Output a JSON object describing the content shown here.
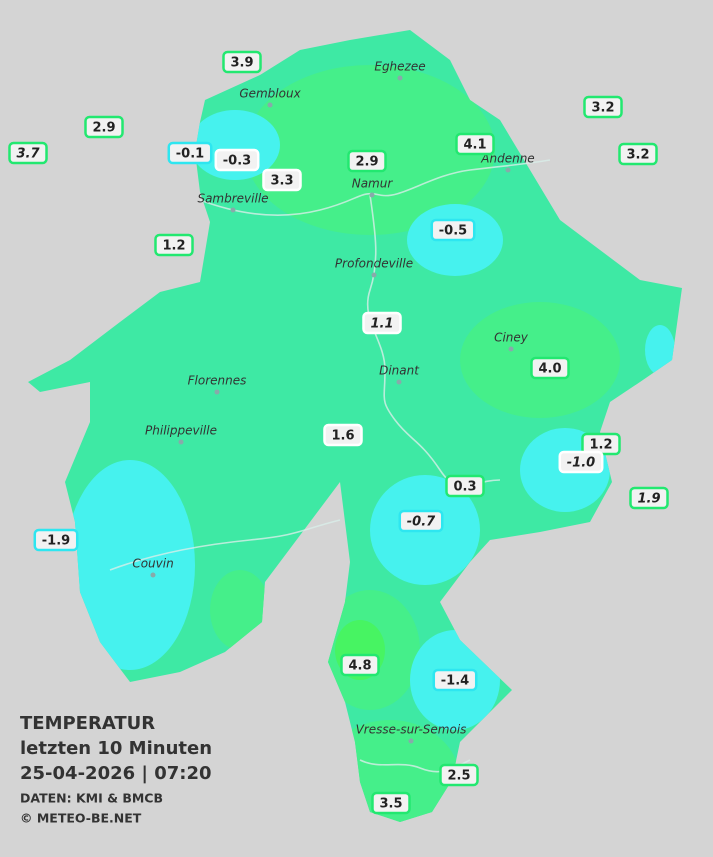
{
  "title": [
    "TEMPERATUR",
    "letzten 10 Minuten",
    "25-04-2026  |  07:20"
  ],
  "credits": [
    "DATEN: KMI & BMCB",
    "© METEO-BE.NET"
  ],
  "cities": [
    "Eghezee",
    "Gembloux",
    "Andenne",
    "Namur",
    "Sambreville",
    "Profondeville",
    "Ciney",
    "Dinant",
    "Florennes",
    "Philippeville",
    "Couvin",
    "Vresse-sur-Semois"
  ],
  "stations": [
    "3.9",
    "2.9",
    "3.7",
    "-0.1",
    "-0.3",
    "3.3",
    "2.9",
    "4.1",
    "3.2",
    "3.2",
    "-0.5",
    "1.2",
    "1.1",
    "4.0",
    "1.6",
    "1.2",
    "-1.0",
    "1.9",
    "0.3",
    "-0.7",
    "-1.9",
    "4.8",
    "-1.4",
    "2.5",
    "3.5"
  ]
}
